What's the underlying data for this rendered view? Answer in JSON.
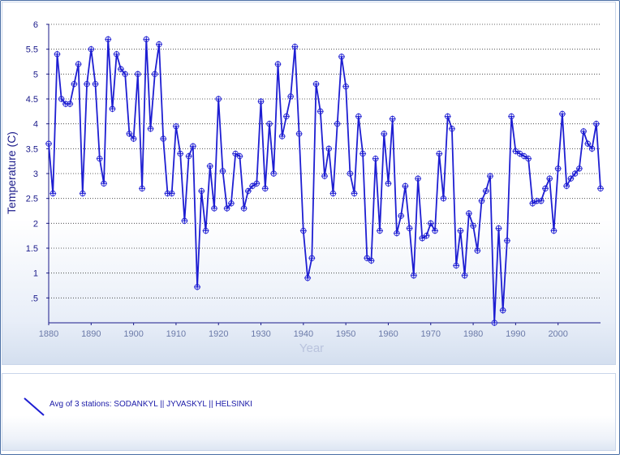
{
  "chart_data": {
    "type": "line",
    "xlabel": "Year",
    "ylabel": "Temperature (C)",
    "xlim": [
      1880,
      2010
    ],
    "ylim": [
      0,
      6
    ],
    "x_ticks": [
      "1880",
      "1890",
      "1900",
      "1910",
      "1920",
      "1930",
      "1940",
      "1950",
      "1960",
      "1970",
      "1980",
      "1990",
      "2000"
    ],
    "y_ticks": [
      {
        "value": 0.5,
        "label": ".5"
      },
      {
        "value": 1,
        "label": "1"
      },
      {
        "value": 1.5,
        "label": "1.5"
      },
      {
        "value": 2,
        "label": "2"
      },
      {
        "value": 2.5,
        "label": "2.5"
      },
      {
        "value": 3,
        "label": "3"
      },
      {
        "value": 3.5,
        "label": "3.5"
      },
      {
        "value": 4,
        "label": "4"
      },
      {
        "value": 4.5,
        "label": "4.5"
      },
      {
        "value": 5,
        "label": "5"
      },
      {
        "value": 5.5,
        "label": "5.5"
      },
      {
        "value": 6,
        "label": "6"
      }
    ],
    "grid": "horizontal dotted",
    "series": [
      {
        "name": "Avg of 3 stations: SODANKYL || JYVASKYL || HELSINKI",
        "color": "#1e1ed2",
        "x": [
          1880,
          1881,
          1882,
          1883,
          1884,
          1885,
          1886,
          1887,
          1888,
          1889,
          1890,
          1891,
          1892,
          1893,
          1894,
          1895,
          1896,
          1897,
          1898,
          1899,
          1900,
          1901,
          1902,
          1903,
          1904,
          1905,
          1906,
          1907,
          1908,
          1909,
          1910,
          1911,
          1912,
          1913,
          1914,
          1915,
          1916,
          1917,
          1918,
          1919,
          1920,
          1921,
          1922,
          1923,
          1924,
          1925,
          1926,
          1927,
          1928,
          1929,
          1930,
          1931,
          1932,
          1933,
          1934,
          1935,
          1936,
          1937,
          1938,
          1939,
          1940,
          1941,
          1942,
          1943,
          1944,
          1945,
          1946,
          1947,
          1948,
          1949,
          1950,
          1951,
          1952,
          1953,
          1954,
          1955,
          1956,
          1957,
          1958,
          1959,
          1960,
          1961,
          1962,
          1963,
          1964,
          1965,
          1966,
          1967,
          1968,
          1969,
          1970,
          1971,
          1972,
          1973,
          1974,
          1975,
          1976,
          1977,
          1978,
          1979,
          1980,
          1981,
          1982,
          1983,
          1984,
          1985,
          1986,
          1987,
          1988,
          1989,
          1990,
          1991,
          1992,
          1993,
          1994,
          1995,
          1996,
          1997,
          1998,
          1999,
          2000,
          2001,
          2002,
          2003,
          2004,
          2005,
          2006,
          2007,
          2008,
          2009,
          2010
        ],
        "values": [
          3.6,
          2.6,
          5.4,
          4.5,
          4.4,
          4.4,
          4.8,
          5.2,
          2.6,
          4.8,
          5.5,
          4.8,
          3.3,
          2.8,
          5.7,
          4.3,
          5.4,
          5.1,
          5.0,
          3.8,
          3.7,
          5.0,
          2.7,
          5.7,
          3.9,
          5.0,
          5.6,
          3.7,
          2.6,
          2.6,
          3.95,
          3.4,
          2.05,
          3.35,
          3.55,
          0.72,
          2.65,
          1.85,
          3.15,
          2.3,
          4.5,
          3.05,
          2.3,
          2.4,
          3.4,
          3.35,
          2.3,
          2.65,
          2.75,
          2.8,
          4.45,
          2.7,
          4.0,
          3.0,
          5.2,
          3.75,
          4.15,
          4.55,
          5.55,
          3.8,
          1.85,
          0.9,
          1.3,
          4.8,
          4.25,
          2.95,
          3.5,
          2.6,
          4.0,
          5.35,
          4.75,
          3.0,
          2.6,
          4.15,
          3.4,
          1.3,
          1.25,
          3.3,
          1.85,
          3.8,
          2.8,
          4.1,
          1.8,
          2.15,
          2.75,
          1.9,
          0.95,
          2.9,
          1.7,
          1.75,
          2.0,
          1.85,
          3.4,
          2.5,
          4.15,
          3.9,
          1.15,
          1.85,
          0.95,
          2.2,
          1.95,
          1.45,
          2.45,
          2.65,
          2.95,
          0.0,
          1.9,
          0.25,
          1.65,
          4.15,
          3.45,
          3.4,
          3.35,
          3.3,
          2.4,
          2.45,
          2.45,
          2.7,
          2.9,
          1.85,
          3.1,
          4.2,
          2.75,
          2.9,
          3.0,
          3.1,
          3.85,
          3.6,
          3.5,
          4.0,
          2.7
        ]
      }
    ],
    "legend": {
      "position": "bottom-left",
      "label": "Avg of 3 stations: SODANKYL || JYVASKYL || HELSINKI"
    }
  }
}
